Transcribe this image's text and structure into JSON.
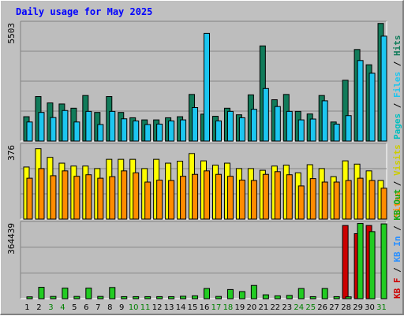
{
  "page": {
    "title": "Daily usage for May 2025"
  },
  "colors": {
    "background": "#c0c0c0",
    "panel": "#bdbdbd",
    "hits": "#117b5a",
    "files": "#1cc6f0",
    "pages": "#00bfbf",
    "visits": "#ffff00",
    "sites": "#ff8c00",
    "kb_in": "#2a8fff",
    "kb_out": "#13a613",
    "kb_f": "#cc0000",
    "kb_bar": "#22cc22",
    "title": "#0000ff",
    "day_weekday": "#000000",
    "day_weekend": "#008000"
  },
  "chart_data": [
    {
      "type": "bar",
      "name": "hits-files-pages",
      "max_label": "5503",
      "ylim": [
        0,
        5503
      ],
      "side_label": [
        {
          "text": "Pages",
          "color": "#00bfbf"
        },
        {
          "text": " / ",
          "color": "#000000"
        },
        {
          "text": "Files",
          "color": "#1cc6f0"
        },
        {
          "text": " / ",
          "color": "#000000"
        },
        {
          "text": "Hits",
          "color": "#117b5a"
        }
      ],
      "series": [
        {
          "name": "Hits",
          "color": "#117b5a",
          "values": [
            1150,
            2100,
            1800,
            1750,
            1550,
            2150,
            1350,
            2100,
            1350,
            1100,
            1000,
            1000,
            1100,
            1150,
            2200,
            1270,
            1170,
            1550,
            1240,
            2180,
            4490,
            1950,
            2200,
            1400,
            1280,
            2150,
            900,
            2870,
            4320,
            3600,
            5550
          ]
        },
        {
          "name": "Files",
          "color": "#1cc6f0",
          "values": [
            900,
            1350,
            1110,
            1440,
            900,
            1400,
            780,
            1400,
            1050,
            950,
            780,
            800,
            950,
            1000,
            1580,
            5080,
            950,
            1400,
            1100,
            1500,
            2480,
            1630,
            1400,
            1000,
            1040,
            1900,
            800,
            1200,
            3800,
            3200,
            4950
          ]
        }
      ]
    },
    {
      "type": "bar",
      "name": "visits-sites",
      "max_label": "376",
      "ylim": [
        0,
        376
      ],
      "side_label": [
        {
          "text": "Sites",
          "color": "#ff8c00"
        },
        {
          "text": " / ",
          "color": "#000000"
        },
        {
          "text": "Visits",
          "color": "#cccc00"
        }
      ],
      "series": [
        {
          "name": "Visits",
          "color": "#ffff00",
          "values": [
            270,
            365,
            320,
            290,
            275,
            275,
            262,
            310,
            310,
            310,
            262,
            310,
            290,
            300,
            340,
            302,
            280,
            290,
            262,
            262,
            253,
            275,
            280,
            240,
            282,
            262,
            220,
            302,
            285,
            250,
            200
          ]
        },
        {
          "name": "Sites",
          "color": "#ff8c00",
          "values": [
            212,
            262,
            225,
            250,
            222,
            230,
            212,
            220,
            250,
            240,
            192,
            202,
            200,
            222,
            232,
            250,
            232,
            222,
            202,
            200,
            232,
            246,
            230,
            172,
            210,
            192,
            192,
            200,
            212,
            200,
            160
          ]
        }
      ]
    },
    {
      "type": "bar",
      "name": "kbytes",
      "max_label": "364439",
      "ylim": [
        0,
        364439
      ],
      "side_label": [
        {
          "text": "KB F",
          "color": "#cc0000"
        },
        {
          "text": " / ",
          "color": "#000000"
        },
        {
          "text": "KB In",
          "color": "#2a8fff"
        },
        {
          "text": " / ",
          "color": "#000000"
        },
        {
          "text": "KB Out",
          "color": "#13a613"
        }
      ],
      "series": [
        {
          "name": "KB F",
          "color": "#cc0000",
          "values": [
            0,
            0,
            0,
            0,
            0,
            0,
            0,
            0,
            0,
            0,
            0,
            0,
            0,
            0,
            0,
            0,
            0,
            0,
            0,
            0,
            0,
            0,
            0,
            0,
            0,
            0,
            0,
            360000,
            320000,
            360000,
            0
          ]
        },
        {
          "name": "KB Out",
          "color": "#22cc22",
          "values": [
            9000,
            56000,
            11000,
            52000,
            11000,
            52000,
            11000,
            55000,
            10000,
            10000,
            10000,
            10000,
            10000,
            12000,
            14000,
            50000,
            11000,
            45000,
            35000,
            65000,
            19000,
            14000,
            16000,
            50000,
            10000,
            50000,
            10000,
            9000,
            370000,
            330000,
            368000
          ]
        }
      ]
    }
  ],
  "days": [
    {
      "label": "1",
      "weekend": false
    },
    {
      "label": "2",
      "weekend": false
    },
    {
      "label": "3",
      "weekend": true
    },
    {
      "label": "4",
      "weekend": true
    },
    {
      "label": "5",
      "weekend": false
    },
    {
      "label": "6",
      "weekend": false
    },
    {
      "label": "7",
      "weekend": false
    },
    {
      "label": "8",
      "weekend": false
    },
    {
      "label": "9",
      "weekend": false
    },
    {
      "label": "10",
      "weekend": true
    },
    {
      "label": "11",
      "weekend": true
    },
    {
      "label": "12",
      "weekend": false
    },
    {
      "label": "13",
      "weekend": false
    },
    {
      "label": "14",
      "weekend": false
    },
    {
      "label": "15",
      "weekend": false
    },
    {
      "label": "16",
      "weekend": false
    },
    {
      "label": "17",
      "weekend": true
    },
    {
      "label": "18",
      "weekend": true
    },
    {
      "label": "19",
      "weekend": false
    },
    {
      "label": "20",
      "weekend": false
    },
    {
      "label": "21",
      "weekend": false
    },
    {
      "label": "22",
      "weekend": false
    },
    {
      "label": "23",
      "weekend": false
    },
    {
      "label": "24",
      "weekend": true
    },
    {
      "label": "25",
      "weekend": true
    },
    {
      "label": "26",
      "weekend": false
    },
    {
      "label": "27",
      "weekend": false
    },
    {
      "label": "28",
      "weekend": false
    },
    {
      "label": "29",
      "weekend": false
    },
    {
      "label": "30",
      "weekend": false
    },
    {
      "label": "31",
      "weekend": true
    }
  ]
}
